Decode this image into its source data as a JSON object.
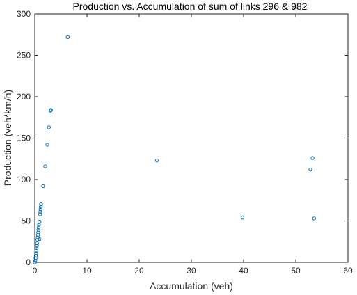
{
  "chart_data": {
    "type": "scatter",
    "title": "Production vs. Accumulation of sum of links 296 & 982",
    "xlabel": "Accumulation (veh)",
    "ylabel": "Production (veh*km/h)",
    "xlim": [
      0,
      60
    ],
    "ylim": [
      0,
      300
    ],
    "xticks": [
      0,
      10,
      20,
      30,
      40,
      50,
      60
    ],
    "yticks": [
      0,
      50,
      100,
      150,
      200,
      250,
      300
    ],
    "xtick_labels": [
      "0",
      "10",
      "20",
      "30",
      "40",
      "50",
      "60"
    ],
    "ytick_labels": [
      "0",
      "50",
      "100",
      "150",
      "200",
      "250",
      "300"
    ],
    "grid": false,
    "marker": "open-circle",
    "color": "#0072BD",
    "points": [
      {
        "x": 0.0,
        "y": 0
      },
      {
        "x": 0.1,
        "y": 2
      },
      {
        "x": 0.15,
        "y": 5
      },
      {
        "x": 0.2,
        "y": 8
      },
      {
        "x": 0.25,
        "y": 11
      },
      {
        "x": 0.3,
        "y": 14
      },
      {
        "x": 0.35,
        "y": 17
      },
      {
        "x": 0.4,
        "y": 20
      },
      {
        "x": 0.45,
        "y": 23
      },
      {
        "x": 0.5,
        "y": 27
      },
      {
        "x": 0.55,
        "y": 30
      },
      {
        "x": 0.6,
        "y": 33
      },
      {
        "x": 0.65,
        "y": 36
      },
      {
        "x": 0.7,
        "y": 39
      },
      {
        "x": 0.75,
        "y": 42
      },
      {
        "x": 0.8,
        "y": 45
      },
      {
        "x": 0.9,
        "y": 28
      },
      {
        "x": 0.9,
        "y": 49
      },
      {
        "x": 1.0,
        "y": 58
      },
      {
        "x": 1.05,
        "y": 61
      },
      {
        "x": 1.1,
        "y": 64
      },
      {
        "x": 1.15,
        "y": 67
      },
      {
        "x": 1.2,
        "y": 70
      },
      {
        "x": 1.6,
        "y": 92
      },
      {
        "x": 2.0,
        "y": 116
      },
      {
        "x": 2.4,
        "y": 142
      },
      {
        "x": 2.7,
        "y": 163
      },
      {
        "x": 3.0,
        "y": 183
      },
      {
        "x": 3.1,
        "y": 184
      },
      {
        "x": 6.3,
        "y": 272
      },
      {
        "x": 23.4,
        "y": 123
      },
      {
        "x": 39.8,
        "y": 54
      },
      {
        "x": 52.8,
        "y": 112
      },
      {
        "x": 53.2,
        "y": 126
      },
      {
        "x": 53.5,
        "y": 53
      }
    ]
  }
}
